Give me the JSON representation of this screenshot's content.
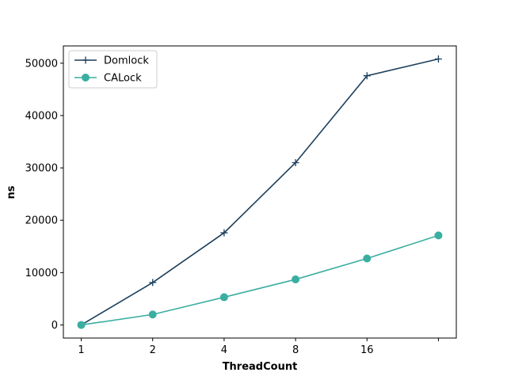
{
  "chart_data": {
    "type": "line",
    "title": "",
    "xlabel": "ThreadCount",
    "ylabel": "ns",
    "categories": [
      "1",
      "2",
      "4",
      "8",
      "16",
      ""
    ],
    "xlim": [
      -0.25,
      5.25
    ],
    "ylim": [
      -2500,
      53300
    ],
    "yticks": [
      0,
      10000,
      20000,
      30000,
      40000,
      50000
    ],
    "grid": false,
    "legend_position": "top-left",
    "series": [
      {
        "name": "Domlock",
        "color": "#1b3f5c",
        "marker": "plus",
        "values": [
          0,
          8100,
          17600,
          31000,
          47600,
          50800
        ]
      },
      {
        "name": "CALock",
        "color": "#3aaea1",
        "marker": "circle",
        "values": [
          0,
          2000,
          5300,
          8700,
          12700,
          17100
        ]
      }
    ]
  }
}
